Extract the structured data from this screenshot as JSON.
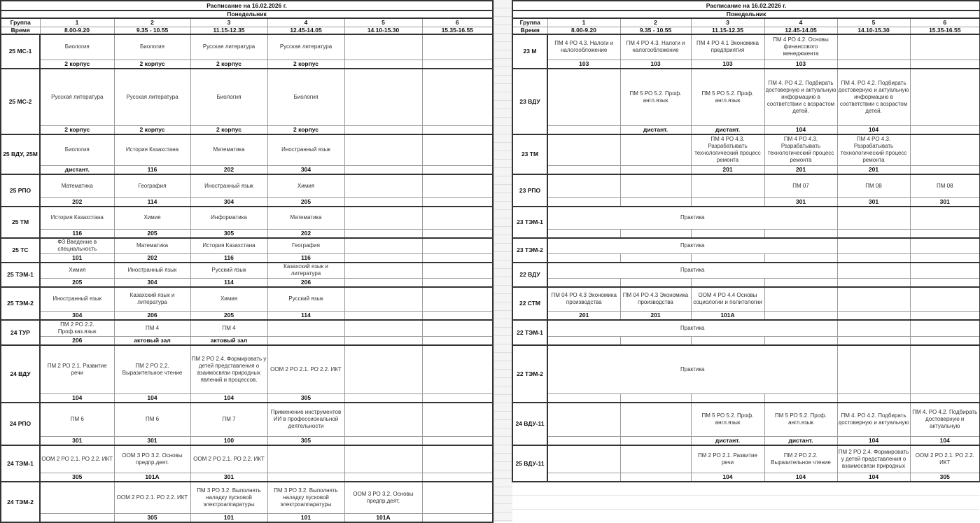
{
  "left": {
    "title": "Расписание на 16.02.2026 г.",
    "day": "Понедельник",
    "group_label": "Группа",
    "time_label": "Время",
    "periods": [
      "1",
      "2",
      "3",
      "4",
      "5",
      "6"
    ],
    "times": [
      "8.00-9.20",
      "9.35 - 10.55",
      "11.15-12.35",
      "12.45-14.05",
      "14.10-15.30",
      "15.35-16.55"
    ],
    "rows": [
      {
        "group": "25 МС-1",
        "cells": [
          {
            "subject": "Биология",
            "room": "2 корпус"
          },
          {
            "subject": "Биология",
            "room": "2 корпус"
          },
          {
            "subject": "Русская литература",
            "room": "2 корпус"
          },
          {
            "subject": "Русская литература",
            "room": "2 корпус"
          },
          {
            "subject": "",
            "room": ""
          },
          {
            "subject": "",
            "room": ""
          }
        ]
      },
      {
        "group": "25 МС-2",
        "cells": [
          {
            "subject": "Русская литература",
            "room": "2 корпус"
          },
          {
            "subject": "Русская литература",
            "room": "2 корпус"
          },
          {
            "subject": "Биология",
            "room": "2 корпус"
          },
          {
            "subject": "Биология",
            "room": "2 корпус"
          },
          {
            "subject": "",
            "room": ""
          },
          {
            "subject": "",
            "room": ""
          }
        ]
      },
      {
        "group": "25 ВДУ, 25М",
        "cells": [
          {
            "subject": "Биология",
            "room": "дистант."
          },
          {
            "subject": "История Казахстана",
            "room": "116"
          },
          {
            "subject": "Математика",
            "room": "202"
          },
          {
            "subject": "Иностранный язык",
            "room": "304"
          },
          {
            "subject": "",
            "room": ""
          },
          {
            "subject": "",
            "room": ""
          }
        ]
      },
      {
        "group": "25 РПО",
        "cells": [
          {
            "subject": "Математика",
            "room": "202"
          },
          {
            "subject": "География",
            "room": "114"
          },
          {
            "subject": "Иностранный язык",
            "room": "304"
          },
          {
            "subject": "Химия",
            "room": "205"
          },
          {
            "subject": "",
            "room": ""
          },
          {
            "subject": "",
            "room": ""
          }
        ]
      },
      {
        "group": "25 ТМ",
        "cells": [
          {
            "subject": "История Казахстана",
            "room": "116"
          },
          {
            "subject": "Химия",
            "room": "205"
          },
          {
            "subject": "Информатика",
            "room": "305"
          },
          {
            "subject": "Математика",
            "room": "202"
          },
          {
            "subject": "",
            "room": ""
          },
          {
            "subject": "",
            "room": ""
          }
        ]
      },
      {
        "group": "25 ТС",
        "cells": [
          {
            "subject": "ФЗ Введение в специальность",
            "room": "101"
          },
          {
            "subject": "Математика",
            "room": "202"
          },
          {
            "subject": "История Казахстана",
            "room": "116"
          },
          {
            "subject": "География",
            "room": "116"
          },
          {
            "subject": "",
            "room": ""
          },
          {
            "subject": "",
            "room": ""
          }
        ]
      },
      {
        "group": "25 ТЭМ-1",
        "cells": [
          {
            "subject": "Химия",
            "room": "205"
          },
          {
            "subject": "Иностранный язык",
            "room": "304"
          },
          {
            "subject": "Русский язык",
            "room": "114"
          },
          {
            "subject": "Казахский язык и литература",
            "room": "206"
          },
          {
            "subject": "",
            "room": ""
          },
          {
            "subject": "",
            "room": ""
          }
        ]
      },
      {
        "group": "25 ТЭМ-2",
        "cells": [
          {
            "subject": "Иностранный язык",
            "room": "304"
          },
          {
            "subject": "Казахский язык и литература",
            "room": "206"
          },
          {
            "subject": "Химия",
            "room": "205"
          },
          {
            "subject": "Русский язык",
            "room": "114"
          },
          {
            "subject": "",
            "room": ""
          },
          {
            "subject": "",
            "room": ""
          }
        ]
      },
      {
        "group": "24 ТУР",
        "cells": [
          {
            "subject": "ПМ 2 РО 2.2. Проф.каз.язык",
            "room": "206"
          },
          {
            "subject": "ПМ 4",
            "room": "актовый зал"
          },
          {
            "subject": "ПМ 4",
            "room": "актовый зал"
          },
          {
            "subject": "",
            "room": ""
          },
          {
            "subject": "",
            "room": ""
          },
          {
            "subject": "",
            "room": ""
          }
        ]
      },
      {
        "group": "24 ВДУ",
        "cells": [
          {
            "subject": "ПМ 2 РО 2.1. Развитие речи",
            "room": "104"
          },
          {
            "subject": "ПМ 2 РО 2.2. Выразительное чтение",
            "room": "104"
          },
          {
            "subject": "ПМ 2 РО 2.4. Формировать у детей представления о взаимосвязи природных явлений и процессов.",
            "room": "104"
          },
          {
            "subject": "ООМ 2 РО 2.1. РО 2.2. ИКТ",
            "room": "305"
          },
          {
            "subject": "",
            "room": ""
          },
          {
            "subject": "",
            "room": ""
          }
        ]
      },
      {
        "group": "24 РПО",
        "cells": [
          {
            "subject": "ПМ 6",
            "room": "301"
          },
          {
            "subject": "ПМ 6",
            "room": "301"
          },
          {
            "subject": "ПМ 7",
            "room": "100"
          },
          {
            "subject": "Применение инструментов ИИ в профессиональной деятельности",
            "room": "305"
          },
          {
            "subject": "",
            "room": ""
          },
          {
            "subject": "",
            "room": ""
          }
        ]
      },
      {
        "group": "24 ТЭМ-1",
        "cells": [
          {
            "subject": "ООМ 2 РО 2.1. РО 2.2. ИКТ",
            "room": "305"
          },
          {
            "subject": "ООМ 3 РО 3.2. Основы предпр.деят.",
            "room": "101А"
          },
          {
            "subject": "ООМ 2 РО 2.1. РО 2.2. ИКТ",
            "room": "301"
          },
          {
            "subject": "",
            "room": ""
          },
          {
            "subject": "",
            "room": ""
          },
          {
            "subject": "",
            "room": ""
          }
        ]
      },
      {
        "group": "24 ТЭМ-2",
        "cells": [
          {
            "subject": "",
            "room": ""
          },
          {
            "subject": "ООМ 2 РО 2.1. РО 2.2. ИКТ",
            "room": "305"
          },
          {
            "subject": "ПМ 3 РО 3.2. Выполнять наладку пусковой электроаппаратуры",
            "room": "101"
          },
          {
            "subject": "ПМ 3 РО 3.2. Выполнять наладку пусковой электроаппаратуры",
            "room": "101"
          },
          {
            "subject": "ООМ 3 РО 3.2. Основы предпр.деят.",
            "room": "101А"
          },
          {
            "subject": "",
            "room": ""
          }
        ]
      }
    ]
  },
  "right": {
    "title": "Расписание на 16.02.2026 г.",
    "day": "Понедельник",
    "group_label": "Группа",
    "time_label": "Время",
    "periods": [
      "1",
      "2",
      "3",
      "4",
      "5",
      "6"
    ],
    "times": [
      "8.00-9.20",
      "9.35 - 10.55",
      "11.15-12.35",
      "12.45-14.05",
      "14.10-15.30",
      "15.35-16.55"
    ],
    "rows": [
      {
        "group": "23 М",
        "cells": [
          {
            "subject": "ПМ 4 РО 4.3. Налоги и налогообложение",
            "room": "103"
          },
          {
            "subject": "ПМ 4 РО 4.3. Налоги и налогообложение",
            "room": "103"
          },
          {
            "subject": "ПМ 4 РО 4.1 Экономика предприятия",
            "room": "103"
          },
          {
            "subject": "ПМ 4 РО 4.2. Основы финансового менеджмента",
            "room": "103"
          },
          {
            "subject": "",
            "room": ""
          },
          {
            "subject": "",
            "room": ""
          }
        ]
      },
      {
        "group": "23 ВДУ",
        "cells": [
          {
            "subject": "",
            "room": ""
          },
          {
            "subject": "ПМ 5 РО 5.2. Проф. англ.язык",
            "room": "дистант."
          },
          {
            "subject": "ПМ 5 РО 5.2. Проф. англ.язык",
            "room": "дистант."
          },
          {
            "subject": "ПМ 4. РО 4.2. Подбирать достоверную и актуальную информацию в соответствии с возрастом детей.",
            "room": "104"
          },
          {
            "subject": "ПМ 4. РО 4.2. Подбирать достоверную и актуальную информацию в соответствии с возрастом детей.",
            "room": "104"
          },
          {
            "subject": "",
            "room": ""
          }
        ]
      },
      {
        "group": "23 ТМ",
        "cells": [
          {
            "subject": "",
            "room": ""
          },
          {
            "subject": "",
            "room": ""
          },
          {
            "subject": "ПМ 4 РО 4.3. Разрабатывать технологический процесс ремонта",
            "room": "201"
          },
          {
            "subject": "ПМ 4 РО 4.3. Разрабатывать технологический процесс ремонта",
            "room": "201"
          },
          {
            "subject": "ПМ 4 РО 4.3. Разрабатывать технологический процесс ремонта",
            "room": "201"
          },
          {
            "subject": "",
            "room": ""
          }
        ]
      },
      {
        "group": "23 РПО",
        "cells": [
          {
            "subject": "",
            "room": ""
          },
          {
            "subject": "",
            "room": ""
          },
          {
            "subject": "",
            "room": ""
          },
          {
            "subject": "ПМ 07",
            "room": "301"
          },
          {
            "subject": "ПМ 08",
            "room": "301"
          },
          {
            "subject": "ПМ 08",
            "room": "301"
          }
        ]
      },
      {
        "group": "23 ТЭМ-1",
        "merged": {
          "text": "Практика",
          "cols": 4
        },
        "cells": [
          {
            "subject": "",
            "room": ""
          },
          {
            "subject": "",
            "room": ""
          },
          {
            "subject": "",
            "room": ""
          },
          {
            "subject": "",
            "room": ""
          },
          {
            "subject": "",
            "room": ""
          },
          {
            "subject": "",
            "room": ""
          }
        ]
      },
      {
        "group": "23 ТЭМ-2",
        "merged": {
          "text": "Практика",
          "cols": 4
        },
        "cells": [
          {
            "subject": "",
            "room": ""
          },
          {
            "subject": "",
            "room": ""
          },
          {
            "subject": "",
            "room": ""
          },
          {
            "subject": "",
            "room": ""
          },
          {
            "subject": "",
            "room": ""
          },
          {
            "subject": "",
            "room": ""
          }
        ]
      },
      {
        "group": "22 ВДУ",
        "merged": {
          "text": "Практика",
          "cols": 4
        },
        "cells": [
          {
            "subject": "",
            "room": ""
          },
          {
            "subject": "",
            "room": ""
          },
          {
            "subject": "",
            "room": ""
          },
          {
            "subject": "",
            "room": ""
          },
          {
            "subject": "",
            "room": ""
          },
          {
            "subject": "",
            "room": ""
          }
        ]
      },
      {
        "group": "22 СТМ",
        "cells": [
          {
            "subject": "ПМ 04 РО 4.3 Экономика производства",
            "room": "201"
          },
          {
            "subject": "ПМ 04 РО 4.3 Экономика производства",
            "room": "201"
          },
          {
            "subject": "ООМ 4 РО 4.4 Основы социологии и политологии",
            "room": "101А"
          },
          {
            "subject": "",
            "room": ""
          },
          {
            "subject": "",
            "room": ""
          },
          {
            "subject": "",
            "room": ""
          }
        ]
      },
      {
        "group": "22 ТЭМ-1",
        "merged": {
          "text": "Практика",
          "cols": 4
        },
        "cells": [
          {
            "subject": "",
            "room": ""
          },
          {
            "subject": "",
            "room": ""
          },
          {
            "subject": "",
            "room": ""
          },
          {
            "subject": "",
            "room": ""
          },
          {
            "subject": "",
            "room": ""
          },
          {
            "subject": "",
            "room": ""
          }
        ]
      },
      {
        "group": "22 ТЭМ-2",
        "merged": {
          "text": "Практика",
          "cols": 4
        },
        "cells": [
          {
            "subject": "",
            "room": ""
          },
          {
            "subject": "",
            "room": ""
          },
          {
            "subject": "",
            "room": ""
          },
          {
            "subject": "",
            "room": ""
          },
          {
            "subject": "",
            "room": ""
          },
          {
            "subject": "",
            "room": ""
          }
        ]
      },
      {
        "group": "24 ВДУ-11",
        "cells": [
          {
            "subject": "",
            "room": ""
          },
          {
            "subject": "",
            "room": ""
          },
          {
            "subject": "ПМ 5 РО 5.2. Проф. англ.язык",
            "room": "дистант."
          },
          {
            "subject": "ПМ 5 РО 5.2. Проф. англ.язык",
            "room": "дистант."
          },
          {
            "subject": "ПМ 4. РО 4.2. Подбирать достоверную и актуальную",
            "room": "104"
          },
          {
            "subject": "ПМ 4. РО 4.2. Подбирать достоверную и актуальную",
            "room": "104"
          }
        ]
      },
      {
        "group": "25 ВДУ-11",
        "cells": [
          {
            "subject": "",
            "room": ""
          },
          {
            "subject": "",
            "room": ""
          },
          {
            "subject": "ПМ 2 РО 2.1. Развитие речи",
            "room": "104"
          },
          {
            "subject": "ПМ 2 РО 2.2. Выразительное чтение",
            "room": "104"
          },
          {
            "subject": "ПМ 2 РО 2.4. Формировать у детей представления о взаимосвязи природных",
            "room": "104"
          },
          {
            "subject": "ООМ 2 РО 2.1. РО 2.2. ИКТ",
            "room": "305"
          }
        ]
      }
    ]
  }
}
